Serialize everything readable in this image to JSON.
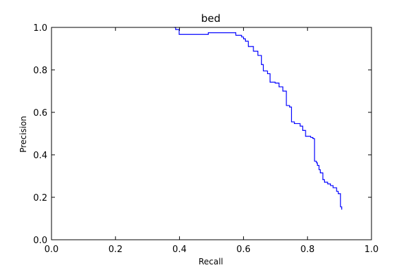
{
  "chart_data": {
    "type": "line",
    "title": "bed",
    "xlabel": "Recall",
    "ylabel": "Precision",
    "xlim": [
      0.0,
      1.0
    ],
    "ylim": [
      0.0,
      1.0
    ],
    "grid": false,
    "legend": "none",
    "x_ticks": [
      "0.0",
      "0.2",
      "0.4",
      "0.6",
      "0.8",
      "1.0"
    ],
    "y_ticks": [
      "0.0",
      "0.2",
      "0.4",
      "0.6",
      "0.8",
      "1.0"
    ],
    "series": [
      {
        "color": "#0000ff",
        "step": "pre",
        "x": [
          0.383,
          0.388,
          0.399,
          0.49,
          0.576,
          0.594,
          0.6,
          0.606,
          0.615,
          0.631,
          0.645,
          0.656,
          0.662,
          0.675,
          0.683,
          0.699,
          0.711,
          0.723,
          0.734,
          0.744,
          0.75,
          0.759,
          0.777,
          0.785,
          0.794,
          0.81,
          0.817,
          0.822,
          0.828,
          0.831,
          0.836,
          0.84,
          0.848,
          0.853,
          0.863,
          0.872,
          0.88,
          0.891,
          0.896,
          0.903,
          0.907
        ],
        "y": [
          1.0,
          0.99,
          0.967,
          0.975,
          0.963,
          0.955,
          0.946,
          0.935,
          0.91,
          0.888,
          0.868,
          0.825,
          0.795,
          0.782,
          0.742,
          0.738,
          0.72,
          0.7,
          0.632,
          0.625,
          0.555,
          0.547,
          0.535,
          0.515,
          0.487,
          0.482,
          0.476,
          0.37,
          0.362,
          0.35,
          0.33,
          0.315,
          0.283,
          0.271,
          0.263,
          0.255,
          0.245,
          0.228,
          0.217,
          0.155,
          0.142
        ]
      }
    ]
  }
}
